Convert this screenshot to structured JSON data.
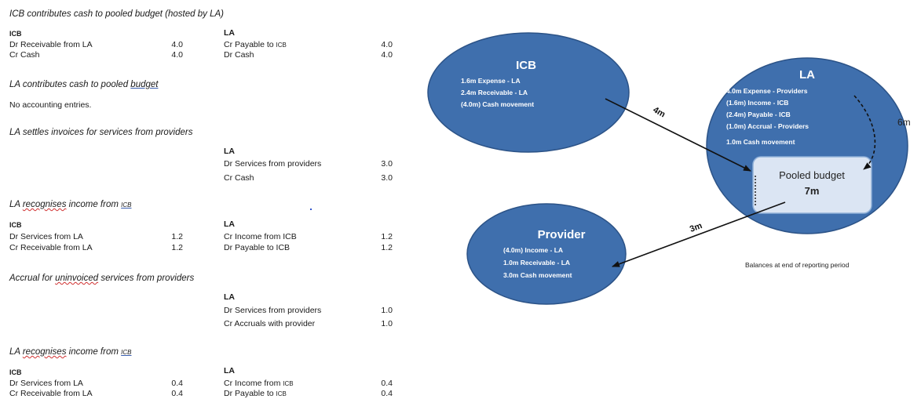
{
  "journal": {
    "s1": {
      "heading": "ICB contributes cash to pooled budget (hosted by LA)",
      "left": {
        "header": "ICB",
        "rows": [
          {
            "label": "Dr Receivable from LA",
            "amount": "4.0"
          },
          {
            "label": "Cr Cash",
            "amount": "4.0"
          }
        ]
      },
      "right": {
        "header": "LA",
        "rows": [
          {
            "label": "Cr Payable to ",
            "suffix": "ICB",
            "amount": "4.0"
          },
          {
            "label": "Dr Cash",
            "suffix": "",
            "amount": "4.0"
          }
        ]
      }
    },
    "s2": {
      "heading_pre": "LA contributes cash to pooled ",
      "heading_link": "budget",
      "note": "No accounting entries."
    },
    "s3": {
      "heading": "LA settles invoices for services from providers",
      "right": {
        "header": "LA",
        "rows": [
          {
            "label": "Dr Services from providers",
            "amount": "3.0"
          },
          {
            "label": "Cr Cash",
            "amount": "3.0"
          }
        ]
      }
    },
    "s4": {
      "heading_pre": "LA ",
      "heading_wavy": "recognises",
      "heading_mid": " income from ",
      "heading_link": "ICB",
      "left": {
        "header": "ICB",
        "rows": [
          {
            "label": "Dr Services from LA",
            "amount": "1.2"
          },
          {
            "label": "Cr Receivable from LA",
            "amount": "1.2"
          }
        ]
      },
      "right": {
        "header": "LA",
        "rows": [
          {
            "label": "Cr Income from ICB",
            "amount": "1.2"
          },
          {
            "label": "Dr Payable to ICB",
            "amount": "1.2"
          }
        ]
      }
    },
    "s5": {
      "heading_pre": "Accrual for ",
      "heading_wavy": "uninvoiced",
      "heading_post": " services from providers",
      "right": {
        "header": "LA",
        "rows": [
          {
            "label": "Dr Services from providers",
            "amount": "1.0"
          },
          {
            "label": "Cr Accruals with provider",
            "amount": "1.0"
          }
        ]
      }
    },
    "s6": {
      "heading_pre": "LA ",
      "heading_wavy": "recognises",
      "heading_mid": " income from ",
      "heading_link": "ICB",
      "left": {
        "header": "ICB",
        "rows": [
          {
            "label": "Dr Services from LA",
            "amount": "0.4"
          },
          {
            "label": "Cr Receivable from LA",
            "amount": "0.4"
          }
        ]
      },
      "right": {
        "header": "LA",
        "rows": [
          {
            "label": "Cr Income from ",
            "suffix": "ICB",
            "amount": "0.4"
          },
          {
            "label": "Dr Payable to ",
            "suffix": "ICB",
            "amount": "0.4"
          }
        ]
      }
    }
  },
  "diagram": {
    "colors": {
      "bubble_fill": "#3f6fad",
      "bubble_stroke": "#2c5387",
      "pooled_fill": "#dbe5f3",
      "pooled_stroke": "#8fb0d8"
    },
    "icb": {
      "title": "ICB",
      "lines": [
        "1.6m Expense   - LA",
        "2.4m Receivable   - LA",
        "(4.0m) Cash movement"
      ]
    },
    "la": {
      "title": "LA",
      "lines": [
        "4.0m  Expense   - Providers",
        "(1.6m) Income   - ICB",
        "(2.4m) Payable   - ICB",
        "(1.0m) Accrual   - Providers",
        "1.0m Cash movement"
      ]
    },
    "provider": {
      "title": "Provider",
      "lines": [
        "(4.0m)  Income   - LA",
        "1.0m Receivable   - LA",
        "3.0m Cash movement"
      ]
    },
    "pooled": {
      "title": "Pooled budget",
      "value": "7m"
    },
    "arrows": {
      "icb_to_pooled": "4m",
      "la_to_pooled": "6m",
      "pooled_to_provider": "3m"
    },
    "caption": "Balances at end of reporting period"
  }
}
